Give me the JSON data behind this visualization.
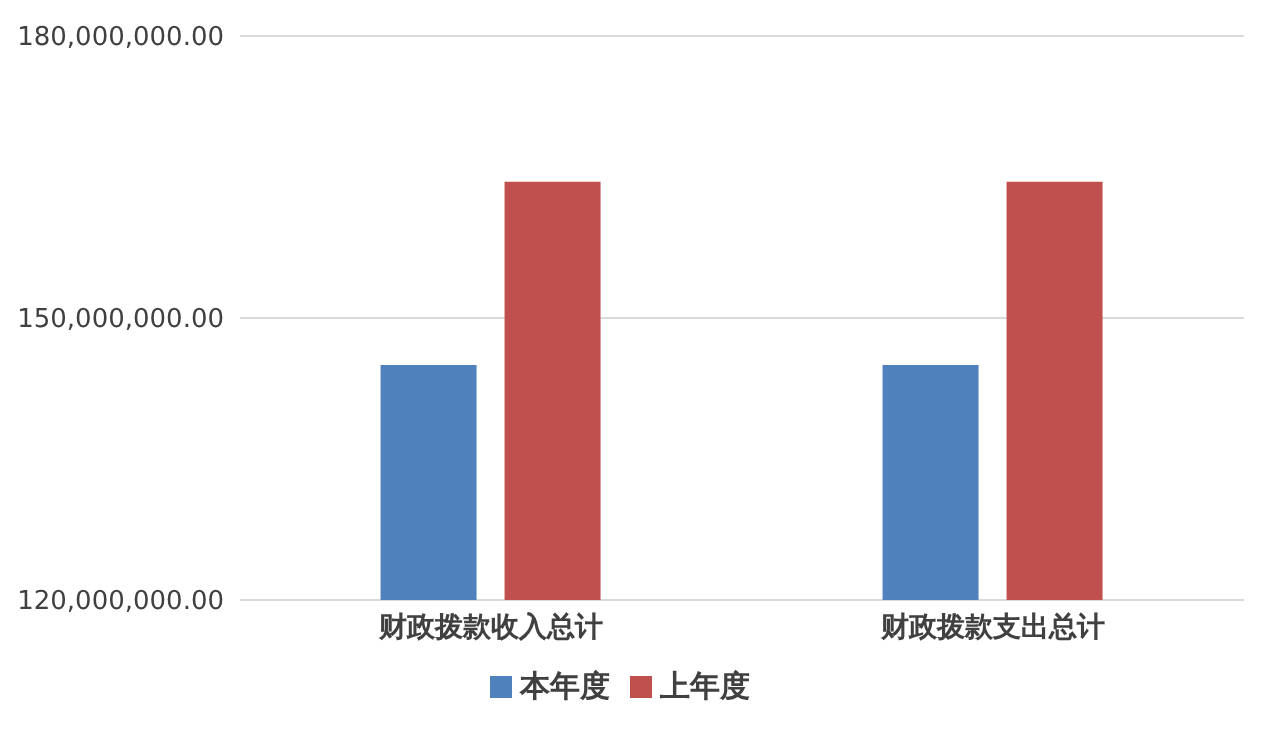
{
  "chart_data": {
    "type": "bar",
    "categories": [
      "财政拨款收入总计",
      "财政拨款支出总计"
    ],
    "series": [
      {
        "name": "本年度",
        "color": "#4f81bd",
        "values": [
          145000000,
          145000000
        ]
      },
      {
        "name": "上年度",
        "color": "#c0504d",
        "values": [
          164500000,
          164500000
        ]
      }
    ],
    "ylim": [
      120000000,
      180000000
    ],
    "yticks": [
      {
        "value": 120000000,
        "label": "120,000,000.00"
      },
      {
        "value": 150000000,
        "label": "150,000,000.00"
      },
      {
        "value": 180000000,
        "label": "180,000,000.00"
      }
    ],
    "grid": "y",
    "legend": "bottom"
  }
}
